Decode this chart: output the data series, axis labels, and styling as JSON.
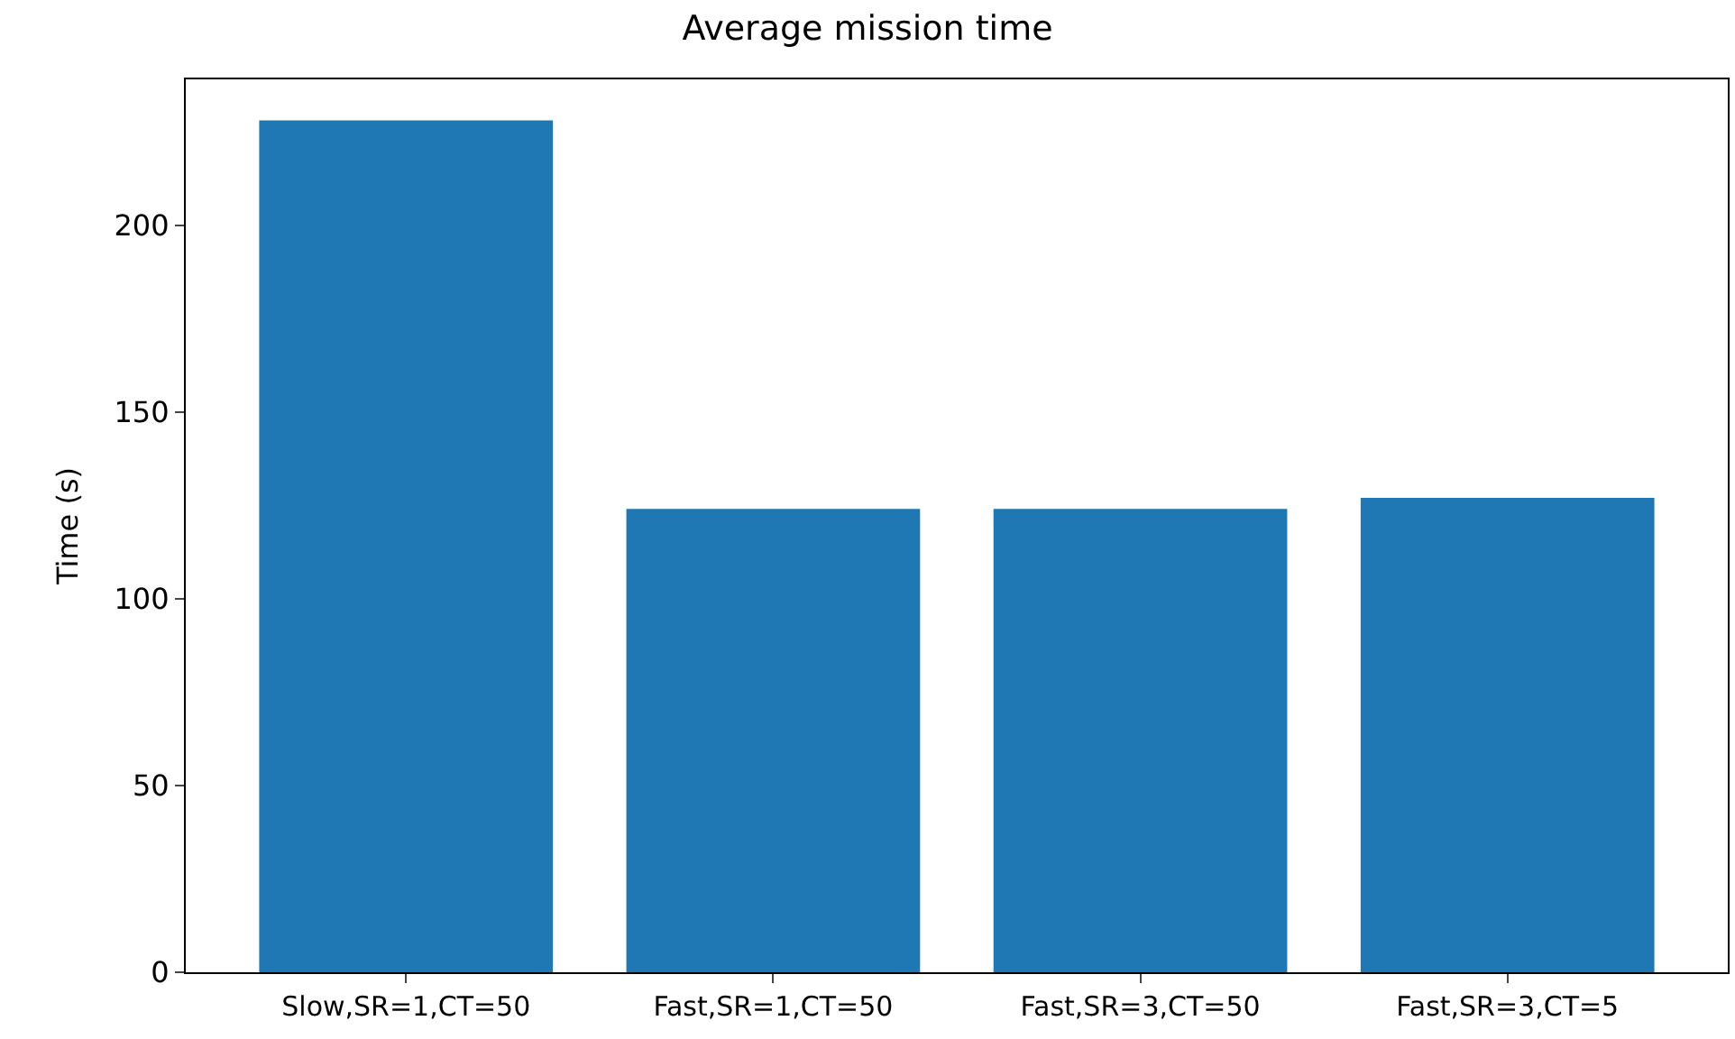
{
  "chart_data": {
    "type": "bar",
    "title": "Average mission time",
    "ylabel": "Time (s)",
    "categories": [
      "Slow,SR=1,CT=50",
      "Fast,SR=1,CT=50",
      "Fast,SR=3,CT=50",
      "Fast,SR=3,CT=5"
    ],
    "values": [
      228,
      124,
      124,
      127
    ],
    "color": "#1f77b4",
    "ylim": [
      0,
      239
    ],
    "yticks": [
      0,
      50,
      100,
      150,
      200
    ]
  }
}
